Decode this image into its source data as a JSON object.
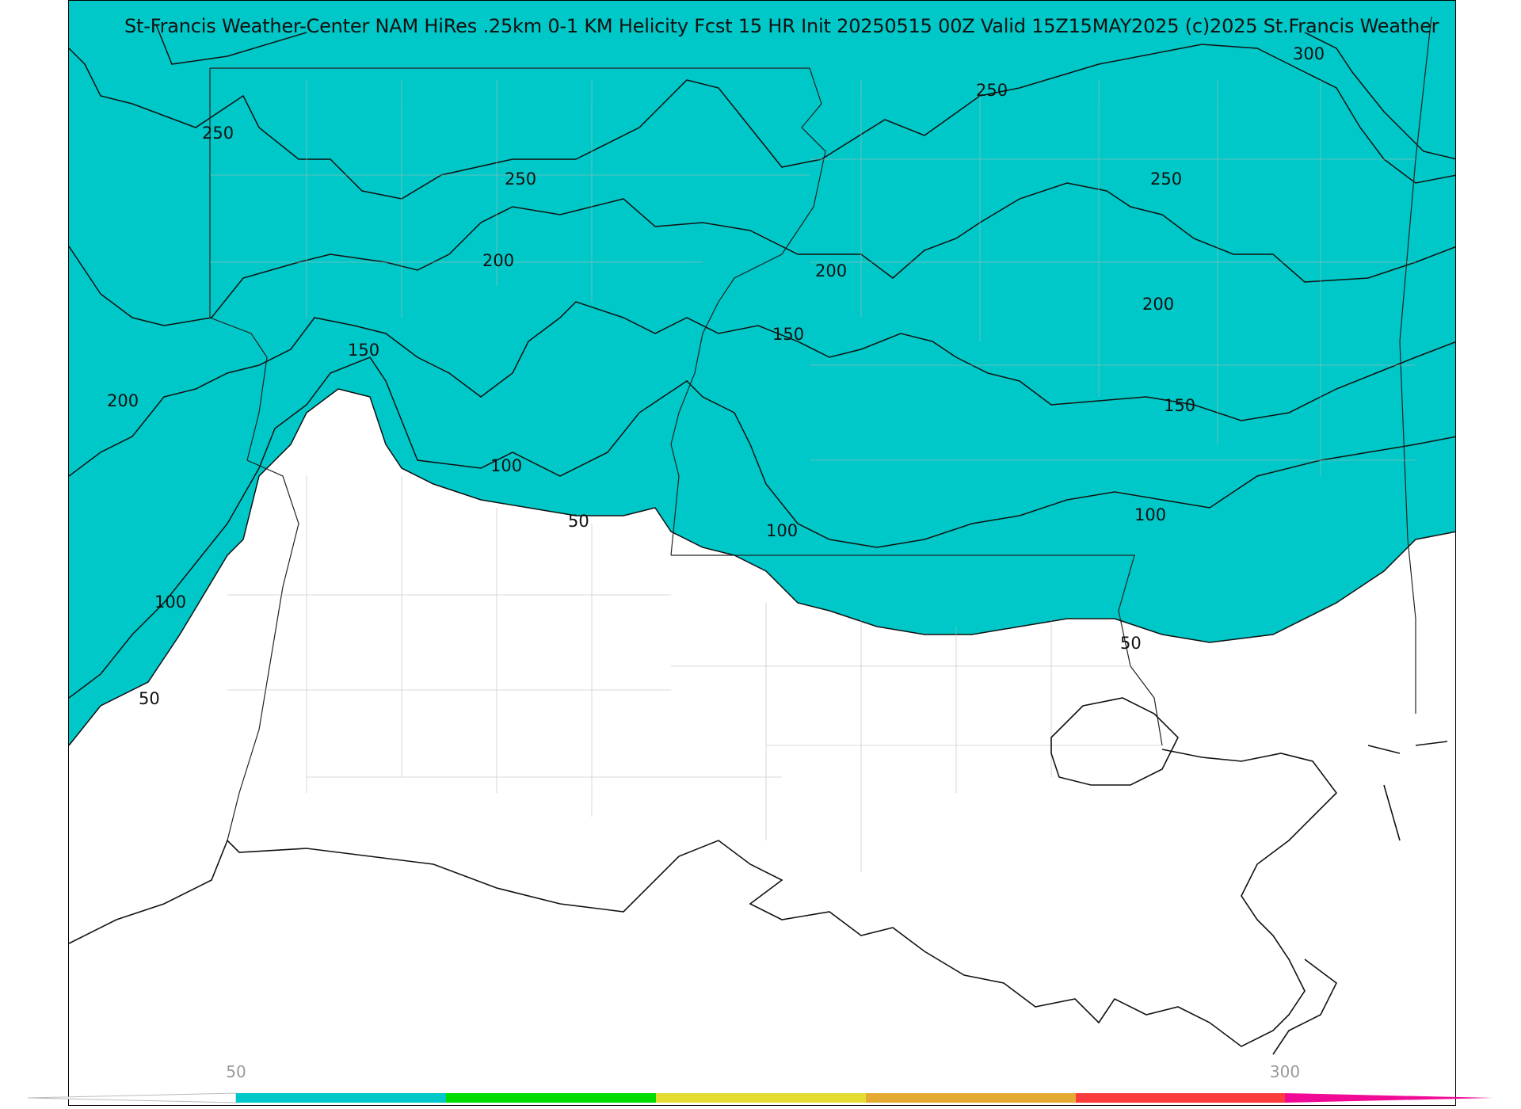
{
  "title": "St-Francis Weather-Center NAM HiRes .25km 0-1 KM Helicity Fcst 15 HR Init 20250515 00Z  Valid 15Z15MAY2025    (c)2025 St.Francis Weather",
  "colors": {
    "band_50_100": "#00c8c8",
    "band_100_150": "#00dc00",
    "band_150_200": "#e4dc32",
    "band_200_250": "#e4aa32",
    "band_250_300": "#fa3c3c",
    "band_300_plus": "#f00a96",
    "below_50": "#ffffff"
  },
  "contour_labels": {
    "c300": "300",
    "c250": "250",
    "c200": "200",
    "c150": "150",
    "c100": "100",
    "c50": "50"
  },
  "colorbar": {
    "min_label": "50",
    "max_label": "300",
    "levels": [
      50,
      100,
      150,
      200,
      250,
      300
    ]
  }
}
